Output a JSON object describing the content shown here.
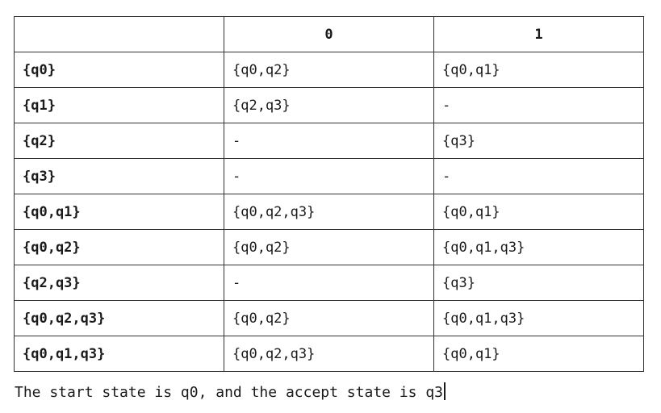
{
  "table": {
    "headers": [
      "",
      "0",
      "1"
    ],
    "rows": [
      {
        "state": "{q0}",
        "on0": "{q0,q2}",
        "on1": "{q0,q1}"
      },
      {
        "state": "{q1}",
        "on0": "{q2,q3}",
        "on1": "-"
      },
      {
        "state": "{q2}",
        "on0": "-",
        "on1": "{q3}"
      },
      {
        "state": "{q3}",
        "on0": "-",
        "on1": "-"
      },
      {
        "state": "{q0,q1}",
        "on0": "{q0,q2,q3}",
        "on1": "{q0,q1}"
      },
      {
        "state": "{q0,q2}",
        "on0": "{q0,q2}",
        "on1": "{q0,q1,q3}"
      },
      {
        "state": "{q2,q3}",
        "on0": "-",
        "on1": "{q3}"
      },
      {
        "state": "{q0,q2,q3}",
        "on0": "{q0,q2}",
        "on1": "{q0,q1,q3}"
      },
      {
        "state": "{q0,q1,q3}",
        "on0": "{q0,q2,q3}",
        "on1": "{q0,q1}"
      }
    ]
  },
  "note": "The start state is q0, and the accept state is q3"
}
